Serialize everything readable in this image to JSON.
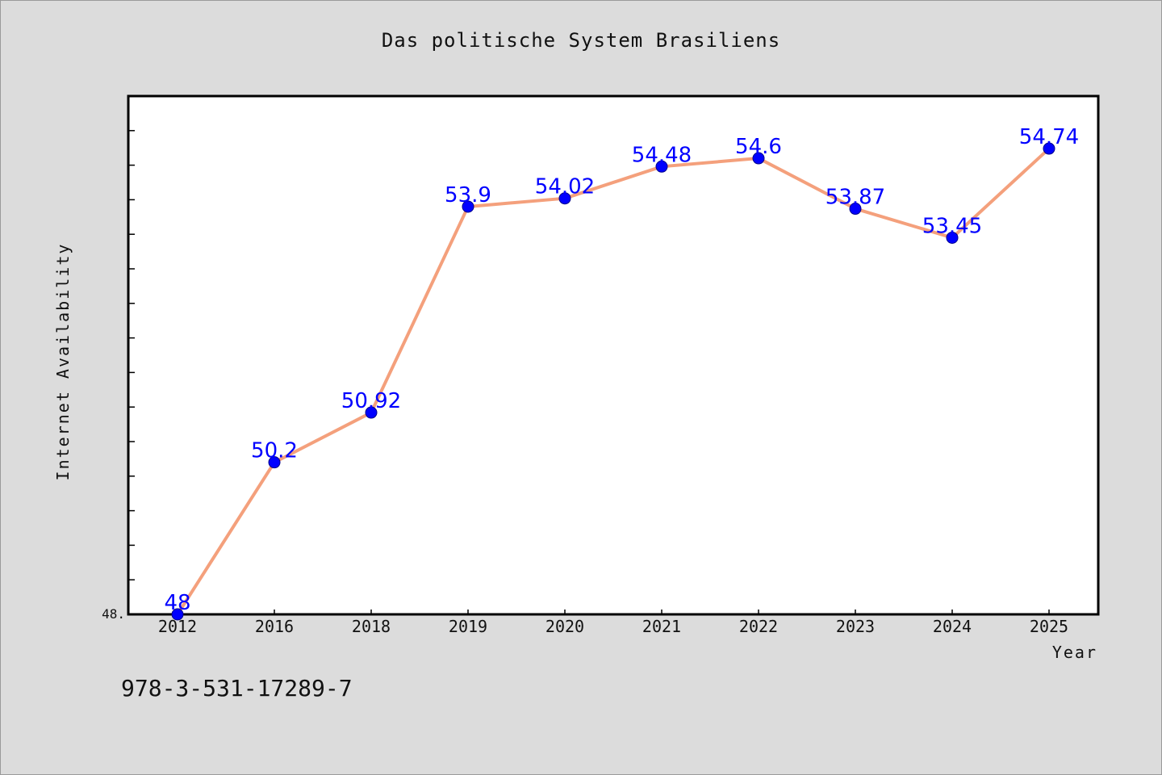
{
  "figure": {
    "background": "#dcdcdc",
    "isbn": "978-3-531-17289-7"
  },
  "chart_data": {
    "type": "line",
    "title": "Das politische System Brasiliens",
    "xlabel": "Year",
    "ylabel": "Internet Availability",
    "categories": [
      "2012",
      "2016",
      "2018",
      "2019",
      "2020",
      "2021",
      "2022",
      "2023",
      "2024",
      "2025"
    ],
    "values": [
      48,
      50.2,
      50.92,
      53.9,
      54.02,
      54.48,
      54.6,
      53.87,
      53.45,
      54.74
    ],
    "data_labels": [
      "48",
      "50.2",
      "50.92",
      "53.9",
      "54.02",
      "54.48",
      "54.6",
      "53.87",
      "53.45",
      "54.74"
    ],
    "ytick_labels": [
      "48."
    ],
    "ylim": [
      48,
      55.5
    ],
    "minor_tick_step": 0.5,
    "line_color": "#f4a07c",
    "marker_color": "#0000ff",
    "label_color": "#0000ff",
    "grid": false,
    "legend": "none"
  }
}
